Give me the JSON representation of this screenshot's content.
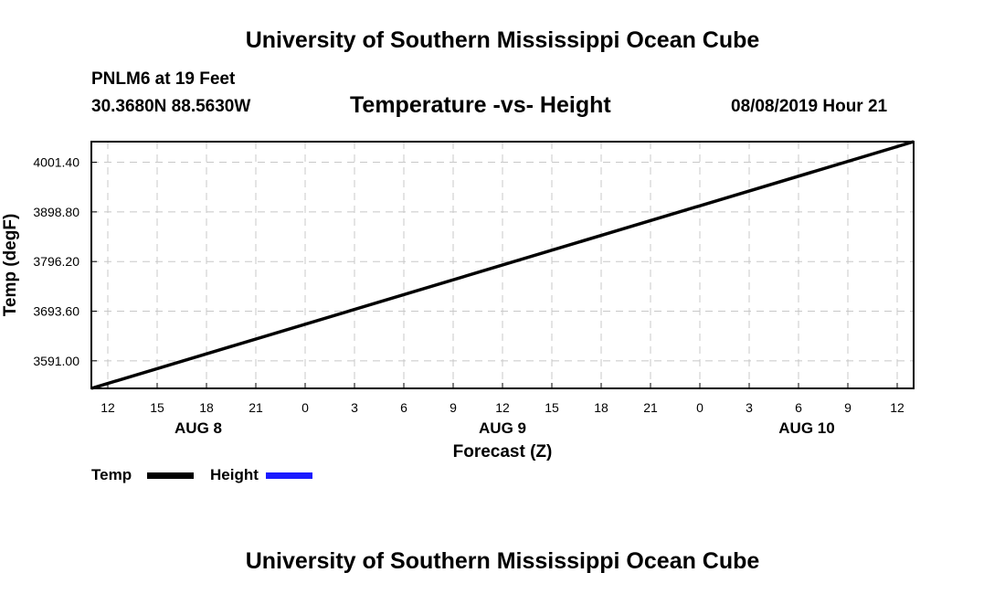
{
  "header": {
    "title_top": "University of Southern Mississippi Ocean Cube",
    "title_bottom": "University of Southern Mississippi Ocean Cube",
    "station": "PNLM6 at 19 Feet",
    "coords": "30.3680N 88.5630W",
    "datetime": "08/08/2019 Hour 21"
  },
  "legend": {
    "temp_label": "Temp",
    "height_label": "Height",
    "temp_color": "#000000",
    "height_color": "#1a1aff"
  },
  "chart_data": {
    "type": "line",
    "title": "Temperature -vs- Height",
    "xlabel": "Forecast (Z)",
    "ylabel": "Temp (degF)",
    "x_ticks": [
      "12",
      "15",
      "18",
      "21",
      "0",
      "3",
      "6",
      "9",
      "12",
      "15",
      "18",
      "21",
      "0",
      "3",
      "6",
      "9",
      "12"
    ],
    "x_tick_hours": [
      0,
      3,
      6,
      9,
      12,
      15,
      18,
      21,
      24,
      27,
      30,
      33,
      36,
      39,
      42,
      45,
      48
    ],
    "x_range_hours": [
      -1,
      49
    ],
    "day_labels": [
      {
        "label": "AUG 8",
        "hour": 5.5
      },
      {
        "label": "AUG 9",
        "hour": 24
      },
      {
        "label": "AUG 10",
        "hour": 42.5
      }
    ],
    "y_ticks": [
      "3591.00",
      "3693.60",
      "3796.20",
      "3898.80",
      "4001.40"
    ],
    "y_tick_values": [
      3591.0,
      3693.6,
      3796.2,
      3898.8,
      4001.4
    ],
    "ylim": [
      3534.0,
      4044.0
    ],
    "grid": true,
    "series": [
      {
        "name": "Temp",
        "color": "#000000",
        "x_hours": [
          -1,
          49
        ],
        "values": [
          3534.0,
          4044.0
        ]
      }
    ]
  }
}
